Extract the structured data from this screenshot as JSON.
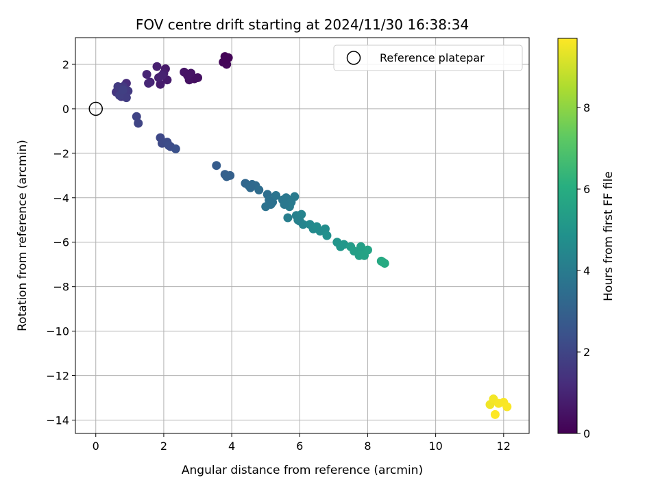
{
  "chart_data": {
    "type": "scatter",
    "title": "FOV centre drift starting at 2024/11/30 16:38:34",
    "xlabel": "Angular distance from reference (arcmin)",
    "ylabel": "Rotation from reference (arcmin)",
    "xlim": [
      -0.6,
      12.75
    ],
    "ylim": [
      -14.6,
      3.2
    ],
    "xticks": [
      0,
      2,
      4,
      6,
      8,
      10,
      12
    ],
    "yticks": [
      2,
      0,
      -2,
      -4,
      -6,
      -8,
      -10,
      -12,
      -14
    ],
    "grid": true,
    "legend": {
      "position": "top-right",
      "entries": [
        "Reference platepar"
      ]
    },
    "reference_point": {
      "x": 0,
      "y": 0
    },
    "colorbar": {
      "label": "Hours from first FF file",
      "colormap": "viridis",
      "range": [
        0,
        9.7
      ],
      "ticks": [
        0,
        2,
        4,
        6,
        8
      ]
    },
    "points": [
      [
        3.8,
        2.35,
        0.05
      ],
      [
        3.9,
        2.3,
        0.1
      ],
      [
        3.75,
        2.1,
        0.15
      ],
      [
        3.85,
        2.0,
        0.2
      ],
      [
        3.82,
        2.2,
        0.12
      ],
      [
        2.9,
        1.35,
        0.35
      ],
      [
        3.0,
        1.4,
        0.4
      ],
      [
        2.75,
        1.3,
        0.45
      ],
      [
        2.8,
        1.6,
        0.5
      ],
      [
        2.6,
        1.65,
        0.55
      ],
      [
        2.7,
        1.5,
        0.52
      ],
      [
        2.05,
        1.8,
        0.65
      ],
      [
        2.1,
        1.3,
        0.7
      ],
      [
        1.9,
        1.1,
        0.75
      ],
      [
        2.0,
        1.6,
        0.8
      ],
      [
        1.8,
        1.9,
        0.85
      ],
      [
        1.85,
        1.4,
        0.88
      ],
      [
        1.6,
        1.2,
        0.95
      ],
      [
        1.5,
        1.55,
        1.0
      ],
      [
        1.55,
        1.15,
        1.05
      ],
      [
        1.95,
        1.5,
        0.9
      ],
      [
        0.9,
        1.15,
        1.2
      ],
      [
        0.85,
        0.7,
        1.3
      ],
      [
        0.7,
        0.9,
        1.4
      ],
      [
        0.6,
        0.75,
        1.5
      ],
      [
        0.75,
        0.55,
        1.55
      ],
      [
        0.8,
        1.0,
        1.6
      ],
      [
        0.95,
        0.8,
        1.65
      ],
      [
        0.65,
        1.0,
        1.7
      ],
      [
        0.9,
        0.5,
        1.75
      ],
      [
        0.7,
        0.6,
        1.8
      ],
      [
        0.8,
        0.85,
        1.85
      ],
      [
        1.2,
        -0.35,
        1.95
      ],
      [
        1.25,
        -0.65,
        2.0
      ],
      [
        1.9,
        -1.3,
        2.1
      ],
      [
        1.95,
        -1.55,
        2.15
      ],
      [
        2.1,
        -1.5,
        2.2
      ],
      [
        2.2,
        -1.7,
        2.3
      ],
      [
        2.35,
        -1.8,
        2.4
      ],
      [
        2.15,
        -1.65,
        2.25
      ],
      [
        3.55,
        -2.55,
        2.8
      ],
      [
        3.8,
        -2.95,
        2.9
      ],
      [
        3.95,
        -3.0,
        2.95
      ],
      [
        3.85,
        -3.05,
        3.0
      ],
      [
        4.4,
        -3.35,
        3.2
      ],
      [
        4.5,
        -3.45,
        3.25
      ],
      [
        4.6,
        -3.4,
        3.3
      ],
      [
        4.7,
        -3.45,
        3.35
      ],
      [
        4.8,
        -3.65,
        3.4
      ],
      [
        4.55,
        -3.55,
        3.3
      ],
      [
        5.05,
        -3.85,
        3.5
      ],
      [
        5.1,
        -4.1,
        3.55
      ],
      [
        5.2,
        -4.2,
        3.6
      ],
      [
        5.0,
        -4.4,
        3.65
      ],
      [
        5.3,
        -3.9,
        3.7
      ],
      [
        5.15,
        -4.3,
        3.6
      ],
      [
        5.5,
        -4.1,
        3.8
      ],
      [
        5.6,
        -4.0,
        3.85
      ],
      [
        5.75,
        -4.2,
        3.9
      ],
      [
        5.85,
        -3.95,
        3.95
      ],
      [
        5.7,
        -4.4,
        4.0
      ],
      [
        5.55,
        -4.3,
        3.88
      ],
      [
        5.65,
        -4.9,
        4.1
      ],
      [
        5.9,
        -4.8,
        4.2
      ],
      [
        6.0,
        -5.05,
        4.25
      ],
      [
        6.05,
        -4.75,
        4.3
      ],
      [
        6.1,
        -5.2,
        4.35
      ],
      [
        5.95,
        -5.0,
        4.22
      ],
      [
        6.3,
        -5.2,
        4.5
      ],
      [
        6.4,
        -5.4,
        4.55
      ],
      [
        6.6,
        -5.5,
        4.65
      ],
      [
        6.75,
        -5.4,
        4.7
      ],
      [
        6.8,
        -5.7,
        4.8
      ],
      [
        6.5,
        -5.3,
        4.6
      ],
      [
        7.1,
        -6.0,
        5.0
      ],
      [
        7.2,
        -6.2,
        5.05
      ],
      [
        7.3,
        -6.1,
        5.1
      ],
      [
        7.5,
        -6.2,
        5.3
      ],
      [
        7.6,
        -6.4,
        5.4
      ],
      [
        7.75,
        -6.6,
        5.45
      ],
      [
        7.85,
        -6.4,
        5.5
      ],
      [
        7.9,
        -6.6,
        5.55
      ],
      [
        8.0,
        -6.35,
        5.6
      ],
      [
        7.8,
        -6.2,
        5.42
      ],
      [
        8.4,
        -6.85,
        5.8
      ],
      [
        8.5,
        -6.95,
        5.85
      ],
      [
        8.45,
        -6.9,
        5.9
      ],
      [
        11.6,
        -13.3,
        9.5
      ],
      [
        11.7,
        -13.05,
        9.55
      ],
      [
        11.85,
        -13.25,
        9.6
      ],
      [
        12.0,
        -13.2,
        9.62
      ],
      [
        12.1,
        -13.4,
        9.65
      ],
      [
        11.75,
        -13.75,
        9.7
      ]
    ]
  }
}
